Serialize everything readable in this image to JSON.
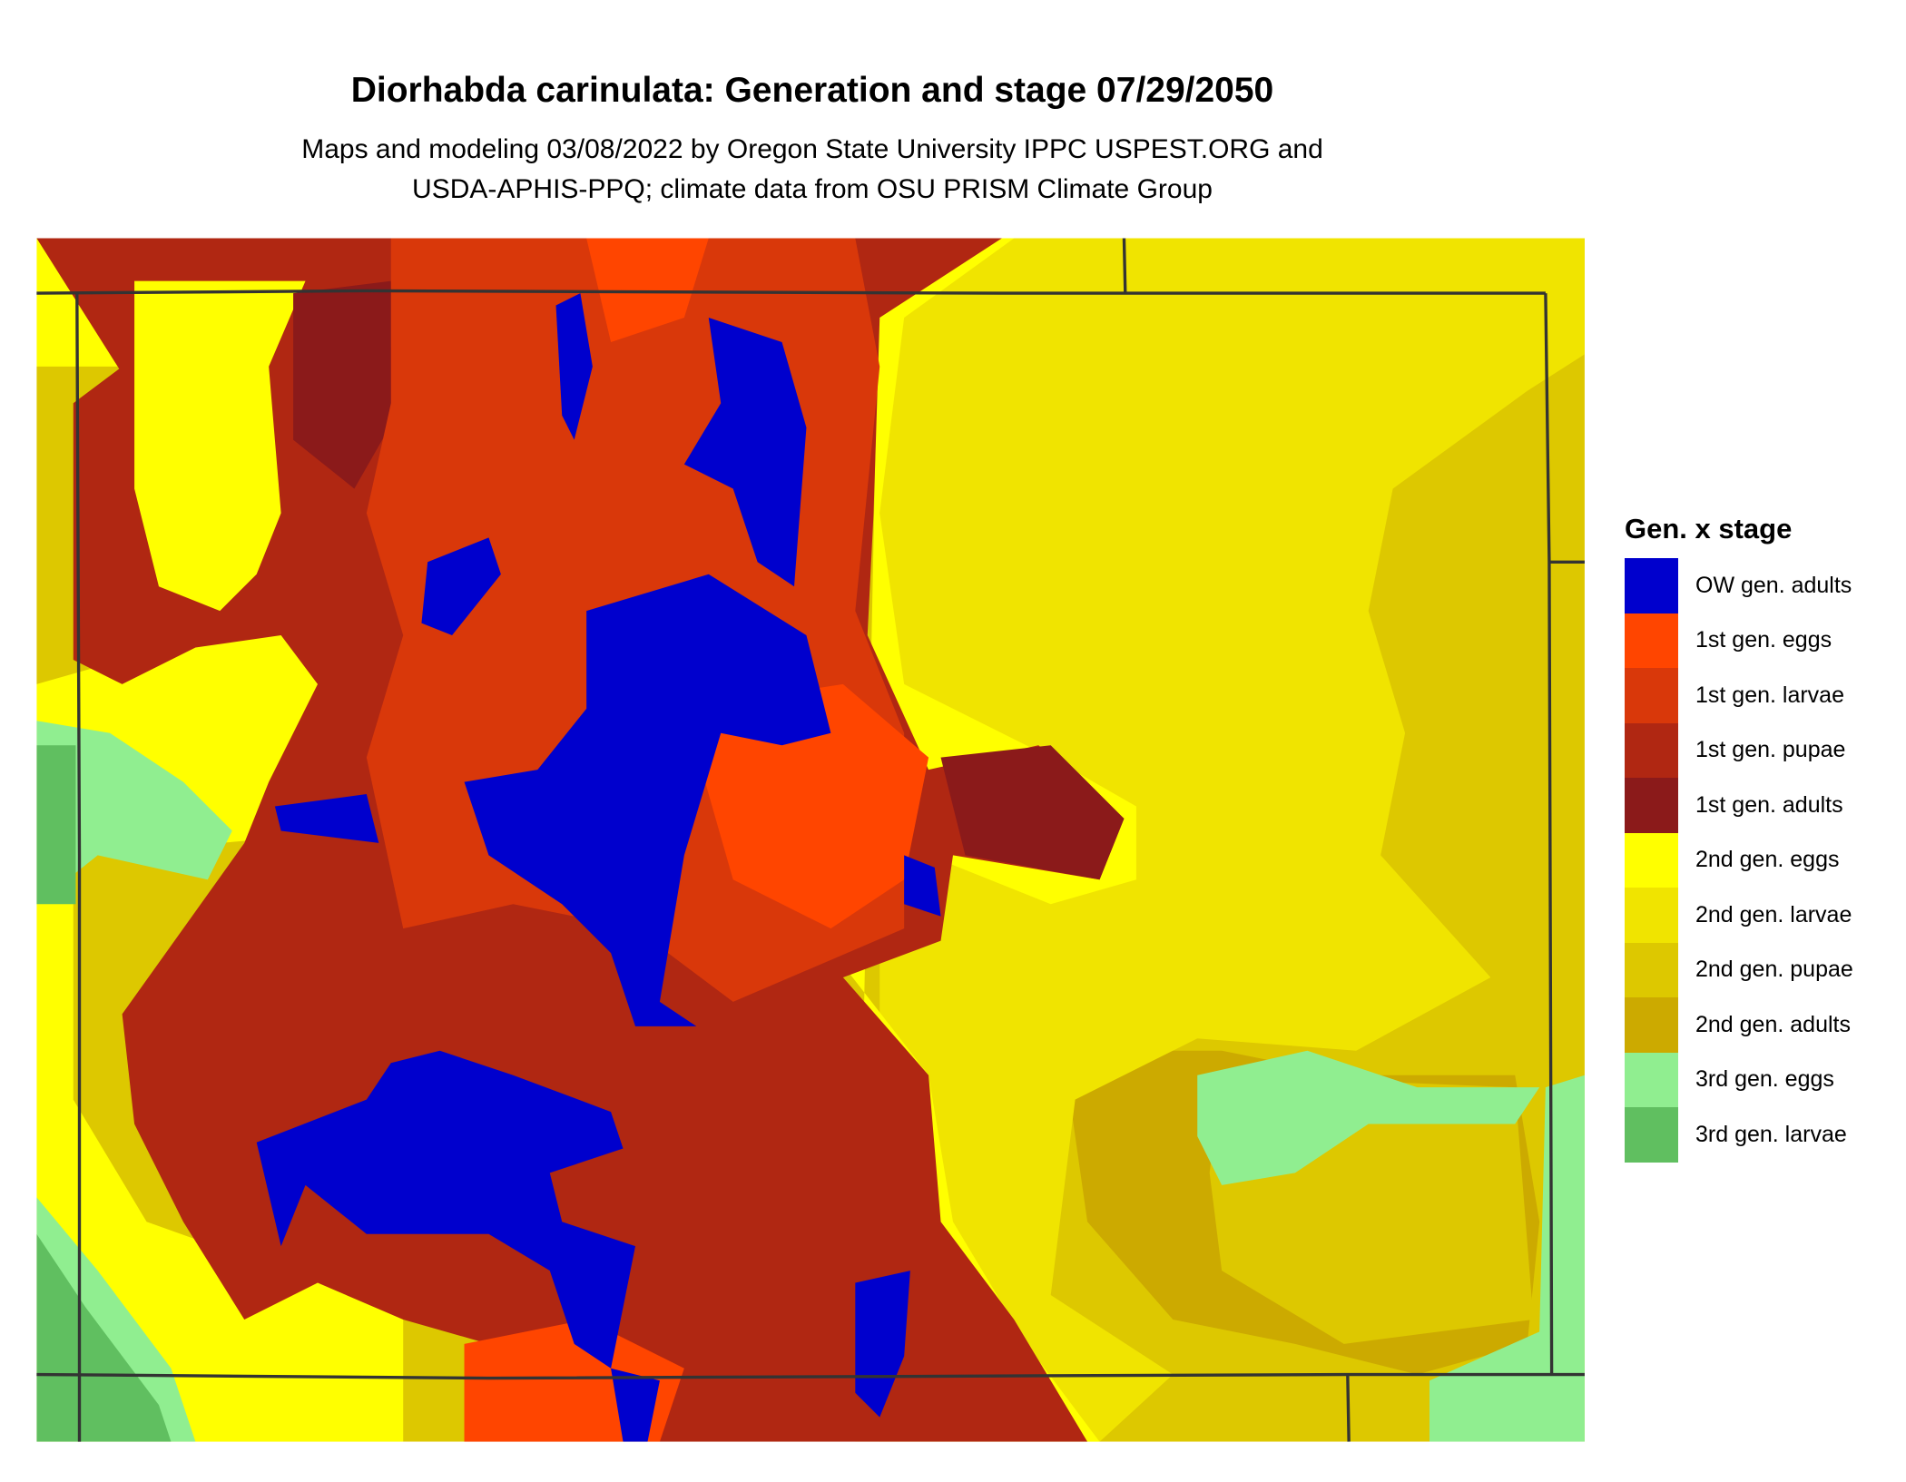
{
  "title": "Diorhabda carinulata: Generation and stage 07/29/2050",
  "subtitle_lines": [
    "Maps and modeling 03/08/2022 by Oregon State University IPPC USPEST.ORG and",
    "USDA-APHIS-PPQ; climate data from OSU PRISM Climate Group"
  ],
  "legend": {
    "title": "Gen. x stage",
    "items": [
      {
        "label": "OW gen. adults",
        "color": "#0000CD"
      },
      {
        "label": "1st gen. eggs",
        "color": "#FF4500"
      },
      {
        "label": "1st gen. larvae",
        "color": "#D9380A"
      },
      {
        "label": "1st gen. pupae",
        "color": "#B02712"
      },
      {
        "label": "1st gen. adults",
        "color": "#8B1A1A"
      },
      {
        "label": "2nd gen. eggs",
        "color": "#FFFF00"
      },
      {
        "label": "2nd gen. larvae",
        "color": "#F0E400"
      },
      {
        "label": "2nd gen. pupae",
        "color": "#DDC800"
      },
      {
        "label": "2nd gen. adults",
        "color": "#CCAA00"
      },
      {
        "label": "3rd gen. eggs",
        "color": "#90EE90"
      },
      {
        "label": "3rd gen. larvae",
        "color": "#60BF60"
      }
    ]
  },
  "boundary_color": "#333333"
}
